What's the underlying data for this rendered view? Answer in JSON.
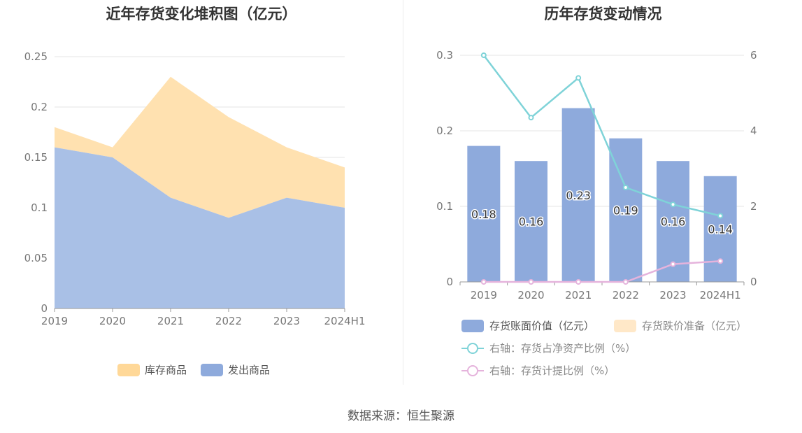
{
  "chart_data": [
    {
      "type": "area",
      "stacked": true,
      "title": "近年存货变化堆积图（亿元）",
      "categories": [
        "2019",
        "2020",
        "2021",
        "2022",
        "2023",
        "2024H1"
      ],
      "y_ticks": [
        "0",
        "0.05",
        "0.1",
        "0.15",
        "0.2",
        "0.25"
      ],
      "ylim": [
        0,
        0.25
      ],
      "grid": true,
      "legend_position": "bottom",
      "series": [
        {
          "name": "发出商品",
          "values": [
            0.16,
            0.15,
            0.11,
            0.09,
            0.11,
            0.1
          ],
          "color": "#a9c0e6"
        },
        {
          "name": "库存商品",
          "values": [
            0.02,
            0.01,
            0.12,
            0.1,
            0.05,
            0.04
          ],
          "color": "#ffe1b0"
        }
      ],
      "legend": [
        {
          "name": "库存商品",
          "color": "#ffd898"
        },
        {
          "name": "发出商品",
          "color": "#8eaadc"
        }
      ]
    },
    {
      "type": "bar",
      "title": "历年存货变动情况",
      "categories": [
        "2019",
        "2020",
        "2021",
        "2022",
        "2023",
        "2024H1"
      ],
      "y_left_ticks": [
        "0",
        "0.1",
        "0.2",
        "0.3"
      ],
      "ylim_left": [
        0,
        0.3
      ],
      "y_right_ticks": [
        "0",
        "2",
        "4",
        "6"
      ],
      "ylim_right": [
        0,
        6
      ],
      "grid": true,
      "legend_position": "bottom",
      "series": [
        {
          "name": "存货账面价值（亿元）",
          "type": "bar",
          "axis": "left",
          "color": "#8eaadc",
          "values": [
            0.18,
            0.16,
            0.23,
            0.19,
            0.16,
            0.14
          ],
          "labels": [
            "0.18",
            "0.16",
            "0.23",
            "0.19",
            "0.16",
            "0.14"
          ]
        },
        {
          "name": "存货跌价准备（亿元）",
          "type": "bar",
          "axis": "left",
          "color": "#ffe8c8",
          "values": [
            0,
            0,
            0,
            0,
            0,
            0
          ]
        },
        {
          "name": "右轴：存货占净资产比例（%）",
          "type": "line",
          "axis": "right",
          "color": "#7fd3d8",
          "values": [
            6.0,
            4.35,
            5.4,
            2.5,
            2.05,
            1.75
          ]
        },
        {
          "name": "右轴：存货计提比例（%）",
          "type": "line",
          "axis": "right",
          "color": "#e5b3dc",
          "values": [
            0,
            0,
            0,
            0,
            0.47,
            0.55
          ]
        }
      ]
    }
  ],
  "source": "数据来源：恒生聚源"
}
